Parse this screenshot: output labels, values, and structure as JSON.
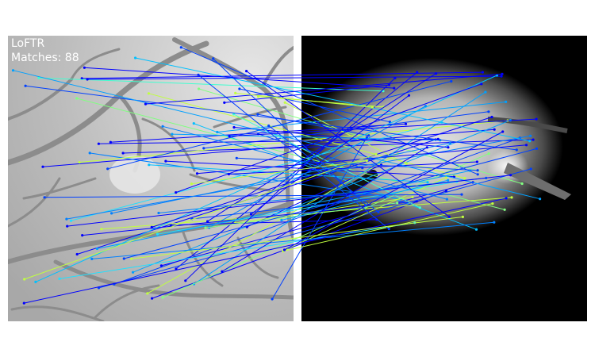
{
  "figure": {
    "method_label": "LoFTR",
    "matches_label": "Matches: 88",
    "match_count": 88,
    "colormap": "jet",
    "colors": {
      "background": "#ffffff",
      "left_panel_gray": "#bdbdbd",
      "vessel_gray": "#8c8c8c",
      "right_panel_bg": "#000000",
      "text": "#ffffff"
    },
    "left_image": "retina-vessel-map",
    "right_image": "fundus-photo-grayscale"
  }
}
